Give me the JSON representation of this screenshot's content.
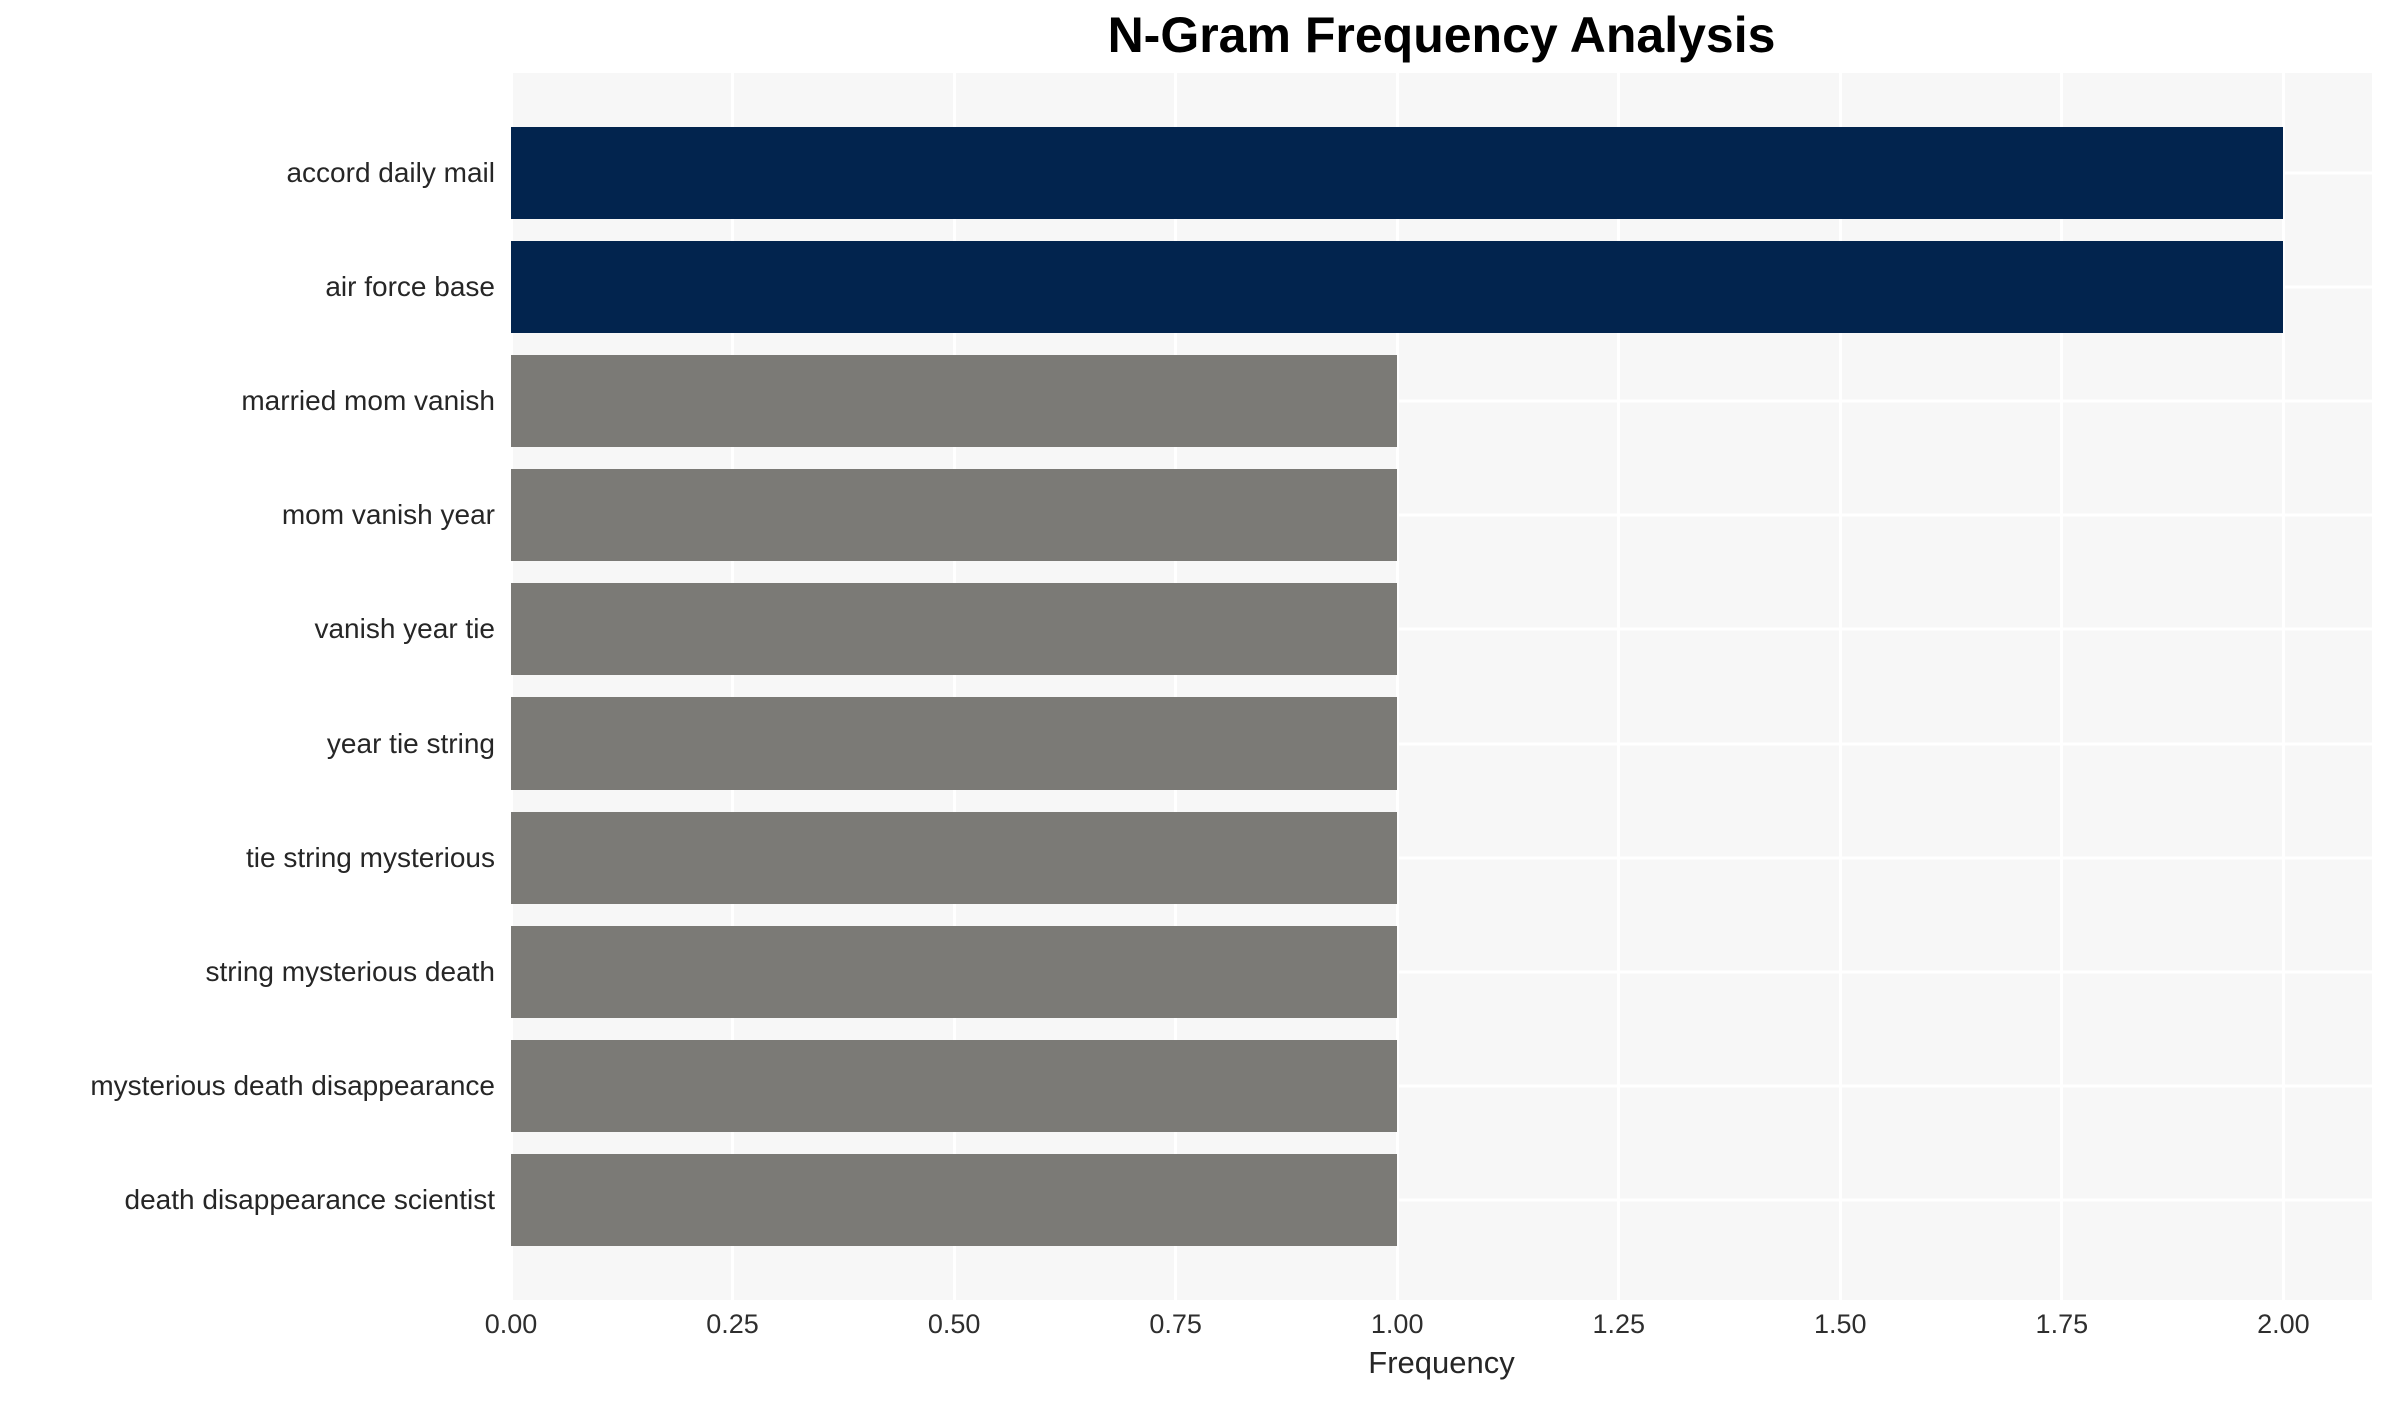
{
  "chart_data": {
    "type": "bar",
    "orientation": "horizontal",
    "title": "N-Gram Frequency Analysis",
    "xlabel": "Frequency",
    "ylabel": "",
    "categories": [
      "accord daily mail",
      "air force base",
      "married mom vanish",
      "mom vanish year",
      "vanish year tie",
      "year tie string",
      "tie string mysterious",
      "string mysterious death",
      "mysterious death disappearance",
      "death disappearance scientist"
    ],
    "values": [
      2,
      2,
      1,
      1,
      1,
      1,
      1,
      1,
      1,
      1
    ],
    "bar_colors": [
      "#02244e",
      "#02244e",
      "#7b7a76",
      "#7b7a76",
      "#7b7a76",
      "#7b7a76",
      "#7b7a76",
      "#7b7a76",
      "#7b7a76",
      "#7b7a76"
    ],
    "xlim": [
      0,
      2.1
    ],
    "xticks": [
      0,
      0.25,
      0.5,
      0.75,
      1.0,
      1.25,
      1.5,
      1.75,
      2.0
    ],
    "xtick_labels": [
      "0.00",
      "0.25",
      "0.50",
      "0.75",
      "1.00",
      "1.25",
      "1.50",
      "1.75",
      "2.00"
    ],
    "grid": true,
    "legend": false,
    "colors": {
      "highlight": "#02244e",
      "base": "#7b7a76",
      "plot_background": "#f7f7f7",
      "gridline": "#ffffff",
      "figure_background": "#ffffff"
    }
  }
}
